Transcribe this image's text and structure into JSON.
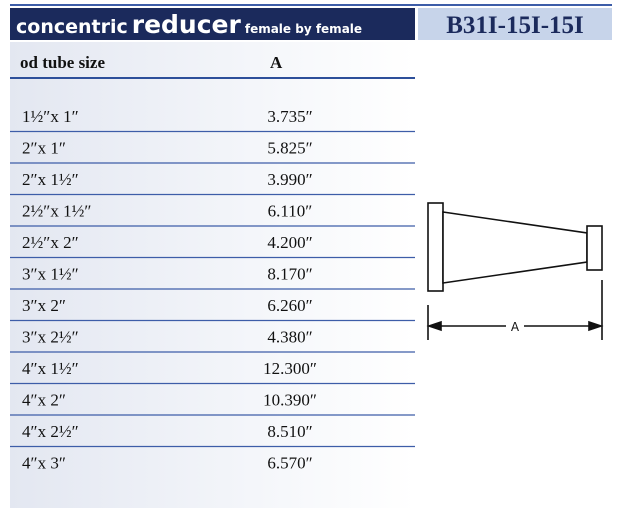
{
  "header": {
    "title_word_1": "concentric",
    "title_word_2": "reducer",
    "title_word_3": "female by female",
    "part_number": "B31I-15I-15I"
  },
  "table": {
    "columns": [
      "od tube size",
      "A"
    ],
    "rows": [
      [
        "1½″x 1″",
        "3.735″"
      ],
      [
        "2″x 1″",
        "5.825″"
      ],
      [
        "2″x 1½″",
        "3.990″"
      ],
      [
        "2½″x 1½″",
        "6.110″"
      ],
      [
        "2½″x 2″",
        "4.200″"
      ],
      [
        "3″x 1½″",
        "8.170″"
      ],
      [
        "3″x 2″",
        "6.260″"
      ],
      [
        "3″x 2½″",
        "4.380″"
      ],
      [
        "4″x 1½″",
        "12.300″"
      ],
      [
        "4″x 2″",
        "10.390″"
      ],
      [
        "4″x 2½″",
        "8.510″"
      ],
      [
        "4″x 3″",
        "6.570″"
      ]
    ]
  },
  "diagram": {
    "dimension_label": "A"
  }
}
